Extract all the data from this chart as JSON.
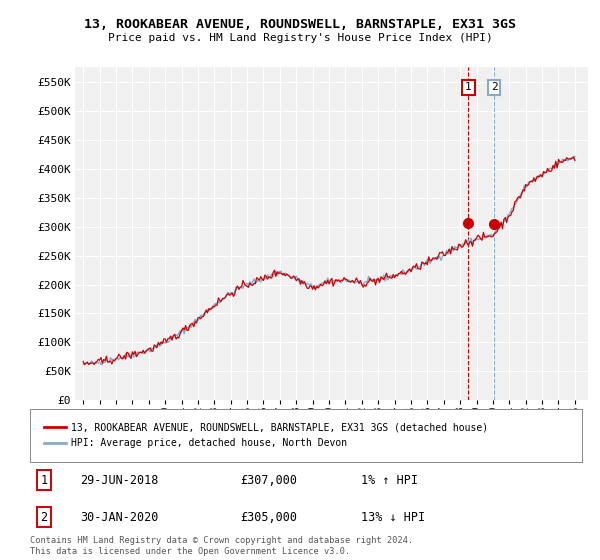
{
  "title": "13, ROOKABEAR AVENUE, ROUNDSWELL, BARNSTAPLE, EX31 3GS",
  "subtitle": "Price paid vs. HM Land Registry's House Price Index (HPI)",
  "ylim": [
    0,
    575000
  ],
  "yticks": [
    0,
    50000,
    100000,
    150000,
    200000,
    250000,
    300000,
    350000,
    400000,
    450000,
    500000,
    550000
  ],
  "ytick_labels": [
    "£0",
    "£50K",
    "£100K",
    "£150K",
    "£200K",
    "£250K",
    "£300K",
    "£350K",
    "£400K",
    "£450K",
    "£500K",
    "£550K"
  ],
  "legend_line1": "13, ROOKABEAR AVENUE, ROUNDSWELL, BARNSTAPLE, EX31 3GS (detached house)",
  "legend_line2": "HPI: Average price, detached house, North Devon",
  "sale1_date": "29-JUN-2018",
  "sale1_price": "£307,000",
  "sale1_hpi": "1% ↑ HPI",
  "sale2_date": "30-JAN-2020",
  "sale2_price": "£305,000",
  "sale2_hpi": "13% ↓ HPI",
  "footer": "Contains HM Land Registry data © Crown copyright and database right 2024.\nThis data is licensed under the Open Government Licence v3.0.",
  "line_color_red": "#cc0000",
  "line_color_blue": "#88aacc",
  "sale_marker_color": "#cc0000",
  "vline1_color": "#cc0000",
  "vline2_color": "#88aacc",
  "bg_color": "#f0f0f0",
  "grid_color": "#ffffff",
  "sale1_year": 2018.5,
  "sale1_price_val": 307000,
  "sale2_year": 2020.083,
  "sale2_price_val": 305000,
  "xlim_left": 1994.5,
  "xlim_right": 2025.8,
  "hpi_key_years": [
    1995,
    1996,
    1997,
    1998,
    1999,
    2000,
    2001,
    2002,
    2003,
    2004,
    2005,
    2006,
    2007,
    2008,
    2009,
    2010,
    2011,
    2012,
    2013,
    2014,
    2015,
    2016,
    2017,
    2018,
    2019,
    2020,
    2021,
    2022,
    2023,
    2024,
    2025
  ],
  "hpi_key_vals": [
    62000,
    66000,
    72000,
    79000,
    87000,
    100000,
    118000,
    140000,
    165000,
    185000,
    200000,
    210000,
    222000,
    210000,
    195000,
    205000,
    208000,
    202000,
    208000,
    215000,
    225000,
    238000,
    252000,
    268000,
    278000,
    285000,
    320000,
    370000,
    390000,
    410000,
    420000
  ],
  "noise_seed": 42,
  "hpi_noise_std": 2500,
  "prop_noise_std": 3500
}
